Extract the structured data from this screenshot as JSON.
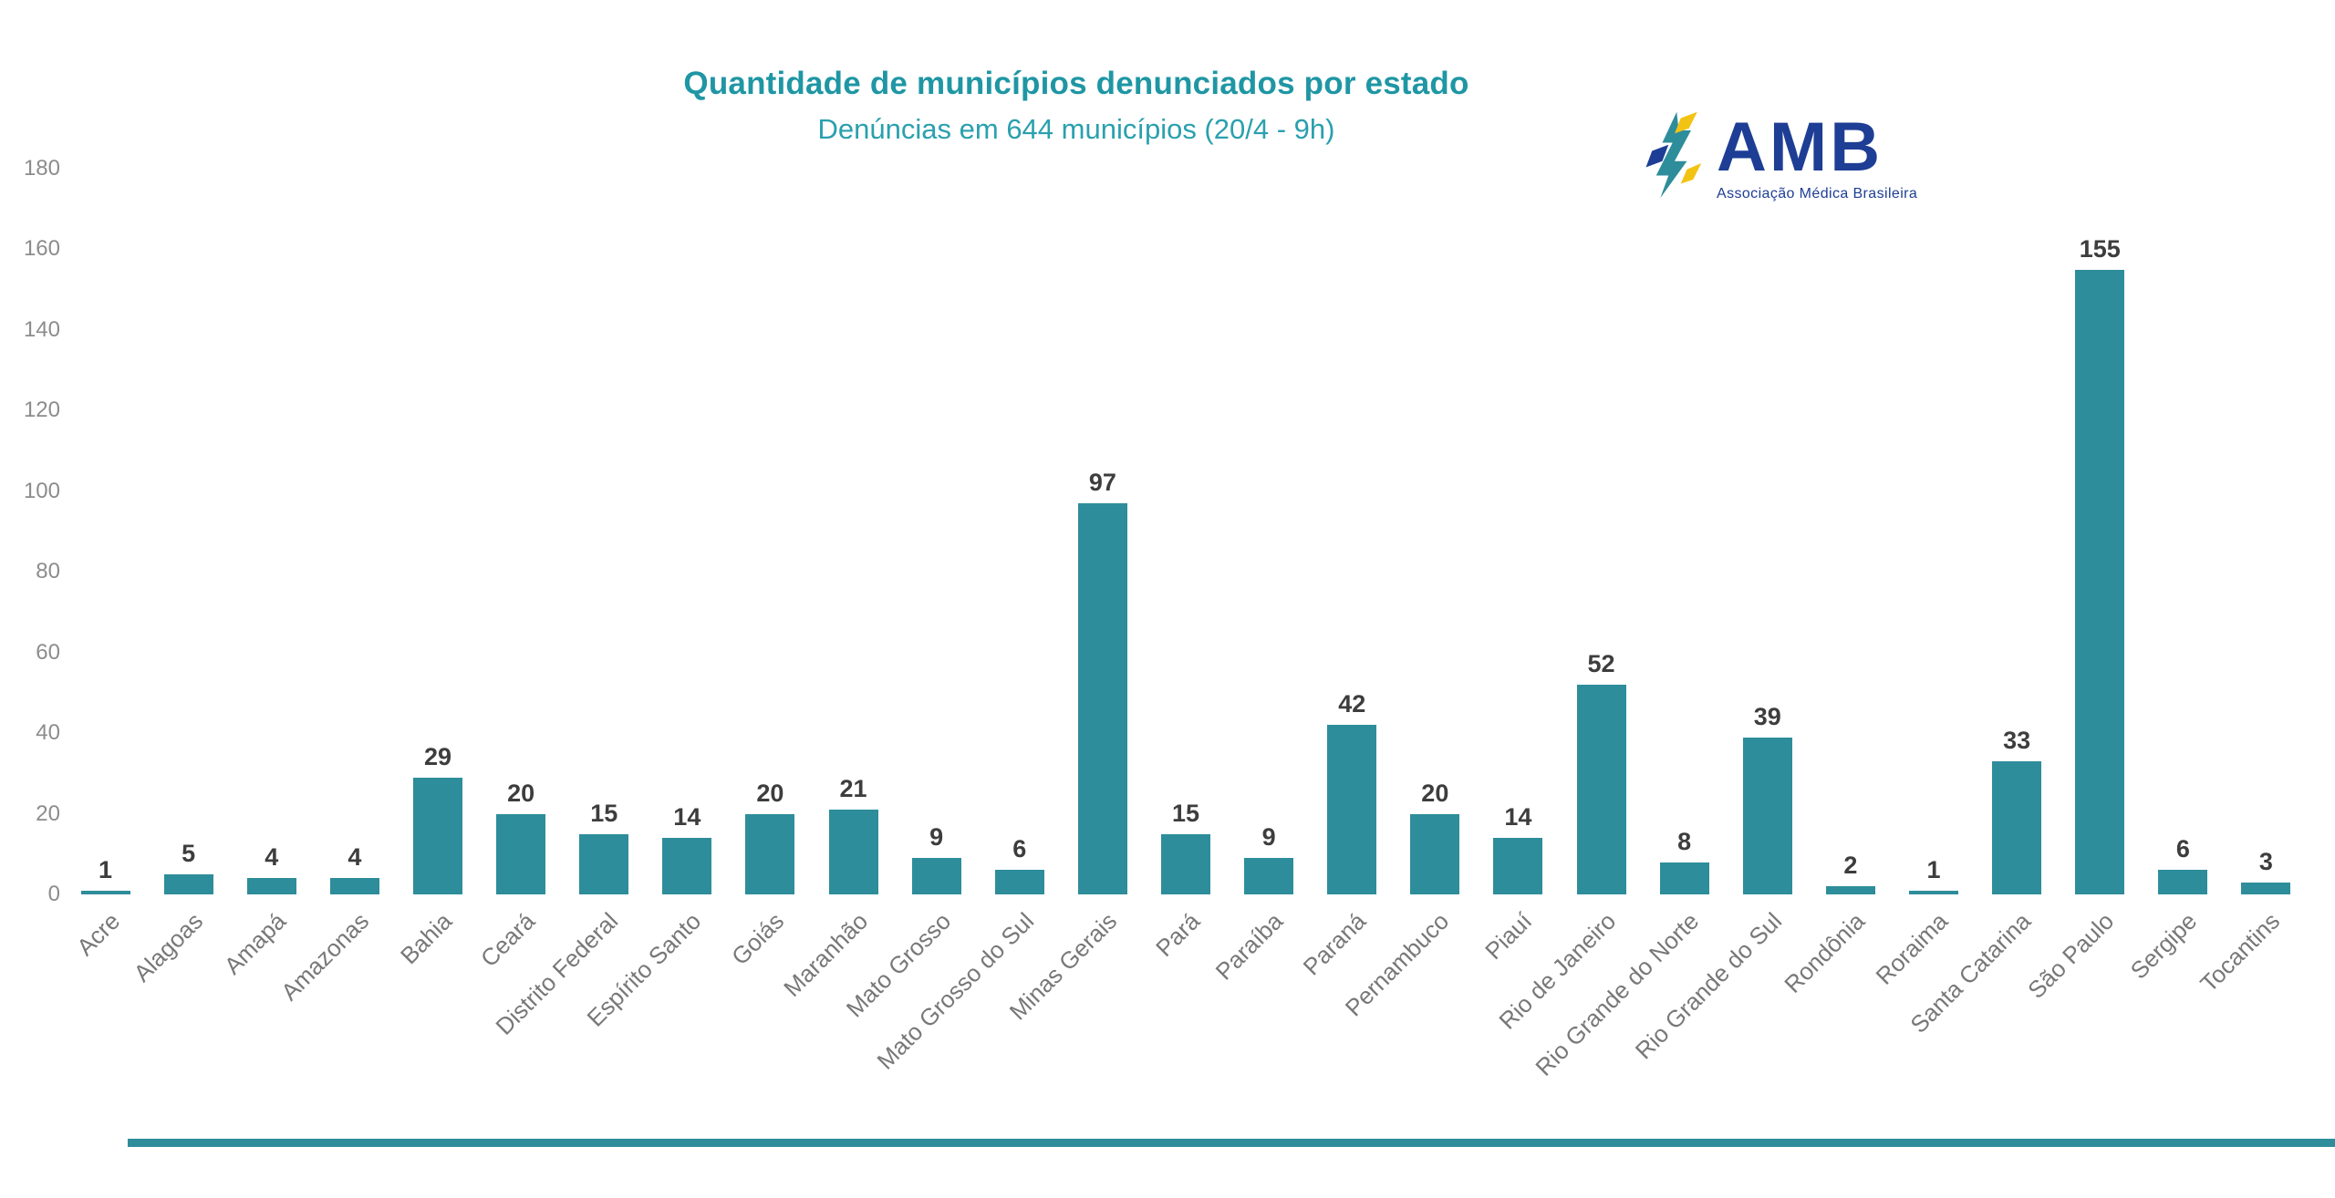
{
  "header": {
    "title": "Quantidade de municípios denunciados por estado",
    "subtitle": "Denúncias em 644 municípios (20/4 - 9h)"
  },
  "logo": {
    "name": "AMB",
    "tagline": "Associação Médica Brasileira"
  },
  "colors": {
    "bar": "#2E8D9A",
    "title": "#1F96A4",
    "subtitle": "#2AA0AE",
    "value_label": "#3d3d3d",
    "tick_label": "#8c8c8c",
    "x_label": "#787878",
    "logo_blue": "#1E3E95",
    "logo_teal": "#2E8D9A",
    "logo_yellow": "#F2C313",
    "footer_strip": "#2E8D9A"
  },
  "chart_data": {
    "type": "bar",
    "title": "Quantidade de municípios denunciados por estado",
    "subtitle": "Denúncias em 644 municípios (20/4 - 9h)",
    "categories": [
      "Acre",
      "Alagoas",
      "Amapá",
      "Amazonas",
      "Bahia",
      "Ceará",
      "Distrito Federal",
      "Espírito Santo",
      "Goiás",
      "Maranhão",
      "Mato Grosso",
      "Mato Grosso do Sul",
      "Minas Gerais",
      "Pará",
      "Paraíba",
      "Paraná",
      "Pernambuco",
      "Piauí",
      "Rio de Janeiro",
      "Rio Grande do Norte",
      "Rio Grande do Sul",
      "Rondônia",
      "Roraima",
      "Santa Catarina",
      "São Paulo",
      "Sergipe",
      "Tocantins"
    ],
    "values": [
      1,
      5,
      4,
      4,
      29,
      20,
      15,
      14,
      20,
      21,
      9,
      6,
      97,
      15,
      9,
      42,
      20,
      14,
      52,
      8,
      39,
      2,
      1,
      33,
      155,
      6,
      3
    ],
    "total": 644,
    "xlabel": "",
    "ylabel": "",
    "ylim": [
      0,
      180
    ],
    "yticks": [
      0,
      20,
      40,
      60,
      80,
      100,
      120,
      140,
      160,
      180
    ],
    "grid": false,
    "legend": null,
    "bar_color": "#2E8D9A",
    "value_labels_shown": true,
    "x_label_rotation_deg": 45
  }
}
